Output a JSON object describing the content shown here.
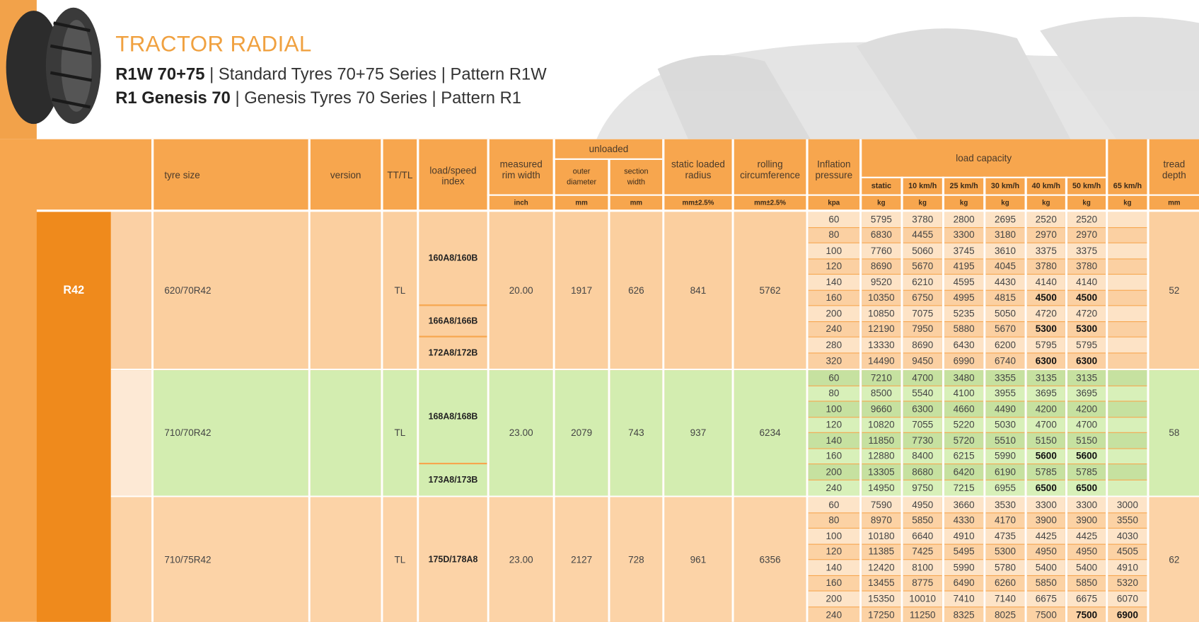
{
  "header": {
    "title": "TRACTOR RADIAL",
    "lines": [
      {
        "bold": "R1W 70+75",
        "text": "| Standard Tyres 70+75 Series | Pattern R1W"
      },
      {
        "bold": "R1 Genesis 70",
        "text": "| Genesis Tyres 70 Series | Pattern R1"
      }
    ]
  },
  "table": {
    "group": "R42",
    "headers": {
      "tyre_size": "tyre size",
      "version": "version",
      "tt_tl": "TT/TL",
      "index": "load/speed index",
      "rim": "measured rim width",
      "unloaded": "unloaded",
      "outer": "outer diameter",
      "section": "section width",
      "radius": "static loaded radius",
      "circ": "rolling circumference",
      "pressure": "Inflation pressure",
      "load": "load capacity",
      "speeds": [
        "static",
        "10 km/h",
        "25 km/h",
        "30 km/h",
        "40 km/h",
        "50 km/h",
        "65 km/h"
      ],
      "tread": "tread depth"
    },
    "units": [
      "inch",
      "mm",
      "mm",
      "mm±2.5%",
      "mm±2.5%",
      "kpa",
      "kg",
      "kg",
      "kg",
      "kg",
      "kg",
      "kg",
      "kg",
      "mm"
    ],
    "tyres": [
      {
        "size": "620/70R42",
        "tt_tl": "TL",
        "indices": [
          {
            "label": "160A8/160B",
            "span": 6
          },
          {
            "label": "166A8/166B",
            "span": 2
          },
          {
            "label": "172A8/172B",
            "span": 2
          }
        ],
        "rim": "20.00",
        "outer": 1917,
        "section": 626,
        "radius": 841,
        "circ": 5762,
        "tread": 52,
        "rows": [
          [
            60,
            5795,
            3780,
            2800,
            2695,
            2520,
            2520
          ],
          [
            80,
            6830,
            4455,
            3300,
            3180,
            2970,
            2970
          ],
          [
            100,
            7760,
            5060,
            3745,
            3610,
            3375,
            3375
          ],
          [
            120,
            8690,
            5670,
            4195,
            4045,
            3780,
            3780
          ],
          [
            140,
            9520,
            6210,
            4595,
            4430,
            4140,
            4140
          ],
          [
            160,
            10350,
            6750,
            4995,
            4815,
            4500,
            4500
          ],
          [
            200,
            10850,
            7075,
            5235,
            5050,
            4720,
            4720
          ],
          [
            240,
            12190,
            7950,
            5880,
            5670,
            5300,
            5300
          ],
          [
            280,
            13330,
            8690,
            6430,
            6200,
            5795,
            5795
          ],
          [
            320,
            14490,
            9450,
            6990,
            6740,
            6300,
            6300
          ]
        ],
        "bold": [
          [
            5,
            5
          ],
          [
            5,
            6
          ],
          [
            7,
            5
          ],
          [
            7,
            6
          ],
          [
            9,
            5
          ],
          [
            9,
            6
          ]
        ],
        "theme": "peach"
      },
      {
        "size": "710/70R42",
        "tt_tl": "TL",
        "indices": [
          {
            "label": "168A8/168B",
            "span": 6
          },
          {
            "label": "173A8/173B",
            "span": 2
          }
        ],
        "rim": "23.00",
        "outer": 2079,
        "section": 743,
        "radius": 937,
        "circ": 6234,
        "tread": 58,
        "rows": [
          [
            60,
            7210,
            4700,
            3480,
            3355,
            3135,
            3135
          ],
          [
            80,
            8500,
            5540,
            4100,
            3955,
            3695,
            3695
          ],
          [
            100,
            9660,
            6300,
            4660,
            4490,
            4200,
            4200
          ],
          [
            120,
            10820,
            7055,
            5220,
            5030,
            4700,
            4700
          ],
          [
            140,
            11850,
            7730,
            5720,
            5510,
            5150,
            5150
          ],
          [
            160,
            12880,
            8400,
            6215,
            5990,
            5600,
            5600
          ],
          [
            200,
            13305,
            8680,
            6420,
            6190,
            5785,
            5785
          ],
          [
            240,
            14950,
            9750,
            7215,
            6955,
            6500,
            6500
          ]
        ],
        "bold": [
          [
            5,
            5
          ],
          [
            5,
            6
          ],
          [
            7,
            5
          ],
          [
            7,
            6
          ]
        ],
        "theme": "green"
      },
      {
        "size": "710/75R42",
        "tt_tl": "TL",
        "indices": [
          {
            "label": "175D/178A8",
            "span": 8
          }
        ],
        "rim": "23.00",
        "outer": 2127,
        "section": 728,
        "radius": 961,
        "circ": 6356,
        "tread": 62,
        "rows": [
          [
            60,
            7590,
            4950,
            3660,
            3530,
            3300,
            3300,
            3000
          ],
          [
            80,
            8970,
            5850,
            4330,
            4170,
            3900,
            3900,
            3550
          ],
          [
            100,
            10180,
            6640,
            4910,
            4735,
            4425,
            4425,
            4030
          ],
          [
            120,
            11385,
            7425,
            5495,
            5300,
            4950,
            4950,
            4505
          ],
          [
            140,
            12420,
            8100,
            5990,
            5780,
            5400,
            5400,
            4910
          ],
          [
            160,
            13455,
            8775,
            6490,
            6260,
            5850,
            5850,
            5320
          ],
          [
            200,
            15350,
            10010,
            7410,
            7140,
            6675,
            6675,
            6070
          ],
          [
            240,
            17250,
            11250,
            8325,
            8025,
            7500,
            7500,
            6900
          ]
        ],
        "bold": [
          [
            7,
            6
          ],
          [
            7,
            7
          ]
        ],
        "theme": "peach2"
      }
    ]
  }
}
